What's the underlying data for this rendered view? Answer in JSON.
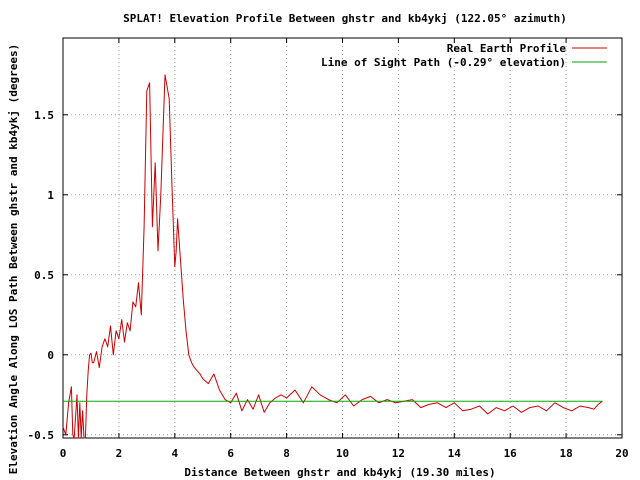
{
  "chart_data": {
    "type": "line",
    "title": "SPLAT! Elevation Profile Between ghstr and kb4ykj (122.05° azimuth)",
    "xlabel": "Distance Between ghstr and kb4ykj (19.30 miles)",
    "ylabel": "Elevation Angle Along LOS Path Between ghstr and kb4ykj (degrees)",
    "xlim": [
      0,
      20
    ],
    "ylim": [
      -0.52,
      1.98
    ],
    "xticks": [
      0,
      2,
      4,
      6,
      8,
      10,
      12,
      14,
      16,
      18,
      20
    ],
    "xtick_labels": [
      "0",
      "2",
      "4",
      "6",
      "8",
      "10",
      "12",
      "14",
      "16",
      "18",
      "20"
    ],
    "yticks": [
      -0.5,
      0,
      0.5,
      1,
      1.5
    ],
    "ytick_labels": [
      "-0.5",
      "0",
      "0.5",
      "1",
      "1.5"
    ],
    "grid": true,
    "legend_position": "top-right",
    "series": [
      {
        "name": "Real Earth Profile",
        "color": "#cc0000",
        "x": [
          0.0,
          0.1,
          0.2,
          0.3,
          0.35,
          0.4,
          0.5,
          0.55,
          0.6,
          0.65,
          0.7,
          0.75,
          0.8,
          0.85,
          0.9,
          0.95,
          1.0,
          1.05,
          1.1,
          1.2,
          1.3,
          1.4,
          1.5,
          1.6,
          1.7,
          1.8,
          1.9,
          2.0,
          2.1,
          2.2,
          2.3,
          2.4,
          2.5,
          2.6,
          2.7,
          2.8,
          2.9,
          3.0,
          3.1,
          3.2,
          3.3,
          3.4,
          3.5,
          3.6,
          3.65,
          3.7,
          3.8,
          3.9,
          4.0,
          4.05,
          4.1,
          4.2,
          4.3,
          4.4,
          4.5,
          4.6,
          4.7,
          4.8,
          4.9,
          5.0,
          5.2,
          5.4,
          5.6,
          5.8,
          6.0,
          6.2,
          6.4,
          6.6,
          6.8,
          7.0,
          7.2,
          7.4,
          7.6,
          7.8,
          8.0,
          8.3,
          8.6,
          8.9,
          9.2,
          9.5,
          9.8,
          10.1,
          10.4,
          10.7,
          11.0,
          11.3,
          11.6,
          11.9,
          12.2,
          12.5,
          12.8,
          13.1,
          13.4,
          13.7,
          14.0,
          14.3,
          14.6,
          14.9,
          15.2,
          15.5,
          15.8,
          16.1,
          16.4,
          16.7,
          17.0,
          17.3,
          17.6,
          17.9,
          18.2,
          18.5,
          18.8,
          19.0,
          19.15,
          19.3
        ],
        "values": [
          -0.45,
          -0.5,
          -0.3,
          -0.2,
          -0.5,
          -0.52,
          -0.25,
          -0.52,
          -0.3,
          -0.52,
          -0.35,
          -0.52,
          -0.52,
          -0.25,
          -0.1,
          0.0,
          0.01,
          -0.05,
          -0.05,
          0.02,
          -0.08,
          0.05,
          0.1,
          0.05,
          0.18,
          0.0,
          0.15,
          0.1,
          0.22,
          0.08,
          0.2,
          0.15,
          0.33,
          0.3,
          0.45,
          0.25,
          0.8,
          1.65,
          1.7,
          0.8,
          1.2,
          0.65,
          1.0,
          1.5,
          1.75,
          1.7,
          1.6,
          1.05,
          0.55,
          0.65,
          0.85,
          0.6,
          0.35,
          0.15,
          0.0,
          -0.05,
          -0.08,
          -0.1,
          -0.12,
          -0.15,
          -0.18,
          -0.12,
          -0.22,
          -0.28,
          -0.3,
          -0.24,
          -0.35,
          -0.28,
          -0.34,
          -0.25,
          -0.36,
          -0.3,
          -0.27,
          -0.25,
          -0.27,
          -0.22,
          -0.3,
          -0.2,
          -0.25,
          -0.28,
          -0.3,
          -0.25,
          -0.32,
          -0.28,
          -0.26,
          -0.3,
          -0.28,
          -0.3,
          -0.29,
          -0.28,
          -0.33,
          -0.31,
          -0.3,
          -0.33,
          -0.3,
          -0.35,
          -0.34,
          -0.32,
          -0.37,
          -0.33,
          -0.35,
          -0.32,
          -0.36,
          -0.33,
          -0.32,
          -0.35,
          -0.3,
          -0.33,
          -0.35,
          -0.32,
          -0.33,
          -0.34,
          -0.31,
          -0.29
        ]
      },
      {
        "name": "Line of Sight Path (-0.29° elevation)",
        "color": "#00aa00",
        "x": [
          0,
          19.3
        ],
        "values": [
          -0.29,
          -0.29
        ]
      }
    ]
  }
}
